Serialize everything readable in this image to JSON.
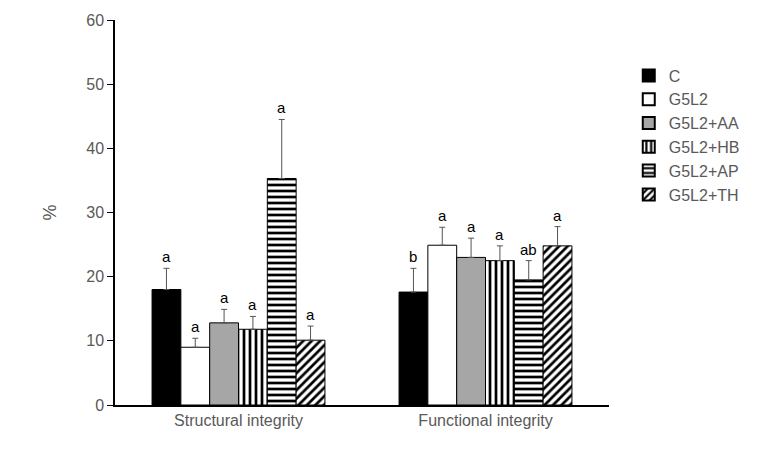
{
  "chart_data": {
    "type": "bar",
    "categories": [
      "Structural integrity",
      "Functional integrity"
    ],
    "ylabel": "%",
    "ylim": [
      0,
      60
    ],
    "yticks": [
      0,
      10,
      20,
      30,
      40,
      50,
      60
    ],
    "grid": false,
    "legend": "right",
    "series": [
      {
        "name": "C",
        "color": "#000000",
        "marker": "solid",
        "values": [
          18.0,
          17.6
        ],
        "errors": [
          3.3,
          3.7
        ],
        "labels": [
          "a",
          "b"
        ]
      },
      {
        "name": "G5L2",
        "color": "#ffffff",
        "marker": "solid",
        "values": [
          9.0,
          24.9
        ],
        "errors": [
          1.4,
          2.8
        ],
        "labels": [
          "a",
          "a"
        ]
      },
      {
        "name": "G5L2+AA",
        "color": "#a6a6a6",
        "marker": "solid",
        "values": [
          12.8,
          23.0
        ],
        "errors": [
          2.1,
          3.0
        ],
        "labels": [
          "a",
          "a"
        ]
      },
      {
        "name": "G5L2+HB",
        "color": "#ffffff",
        "marker": "vertical",
        "values": [
          11.8,
          22.5
        ],
        "errors": [
          2.0,
          2.3
        ],
        "labels": [
          "a",
          "a"
        ]
      },
      {
        "name": "G5L2+AP",
        "color": "#ffffff",
        "marker": "horizontal",
        "values": [
          35.3,
          19.5
        ],
        "errors": [
          9.2,
          3.0
        ],
        "labels": [
          "a",
          "ab"
        ]
      },
      {
        "name": "G5L2+TH",
        "color": "#ffffff",
        "marker": "diagonal",
        "values": [
          10.1,
          24.8
        ],
        "errors": [
          2.2,
          3.0
        ],
        "labels": [
          "a",
          "a"
        ]
      }
    ]
  }
}
